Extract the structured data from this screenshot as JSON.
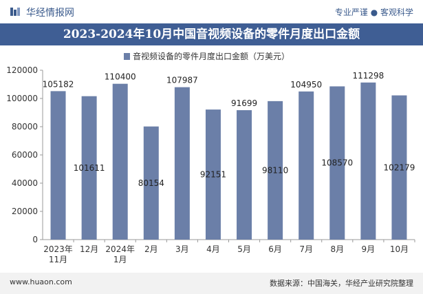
{
  "header": {
    "site_name": "华经情报网",
    "tagline": "专业严谨 ● 客观科学",
    "title": "2023-2024年10月中国音视频设备的零件月度出口金额"
  },
  "footer": {
    "website": "www.huaon.com",
    "source": "数据来源：中国海关，华经产业研究院整理"
  },
  "colors": {
    "bar": "#6b7fa8",
    "title_bg": "#3f5e94",
    "brand": "#3a5a8c"
  },
  "chart_data": {
    "type": "bar",
    "title": "",
    "legend": "音视频设备的零件月度出口金额（万美元）",
    "legend_position": "top-center",
    "categories": [
      [
        "2023年",
        "11月"
      ],
      [
        "12月"
      ],
      [
        "2024年",
        "1月"
      ],
      [
        "2月"
      ],
      [
        "3月"
      ],
      [
        "4月"
      ],
      [
        "5月"
      ],
      [
        "6月"
      ],
      [
        "7月"
      ],
      [
        "8月"
      ],
      [
        "9月"
      ],
      [
        "10月"
      ]
    ],
    "values": [
      105182,
      101611,
      110400,
      80154,
      107987,
      92151,
      91699,
      98110,
      104950,
      108570,
      111298,
      102179
    ],
    "ylim": [
      0,
      120000
    ],
    "yticks": [
      "0",
      "20000",
      "40000",
      "60000",
      "80000",
      "100000",
      "120000"
    ],
    "grid": false,
    "xlabel": "",
    "ylabel": ""
  }
}
